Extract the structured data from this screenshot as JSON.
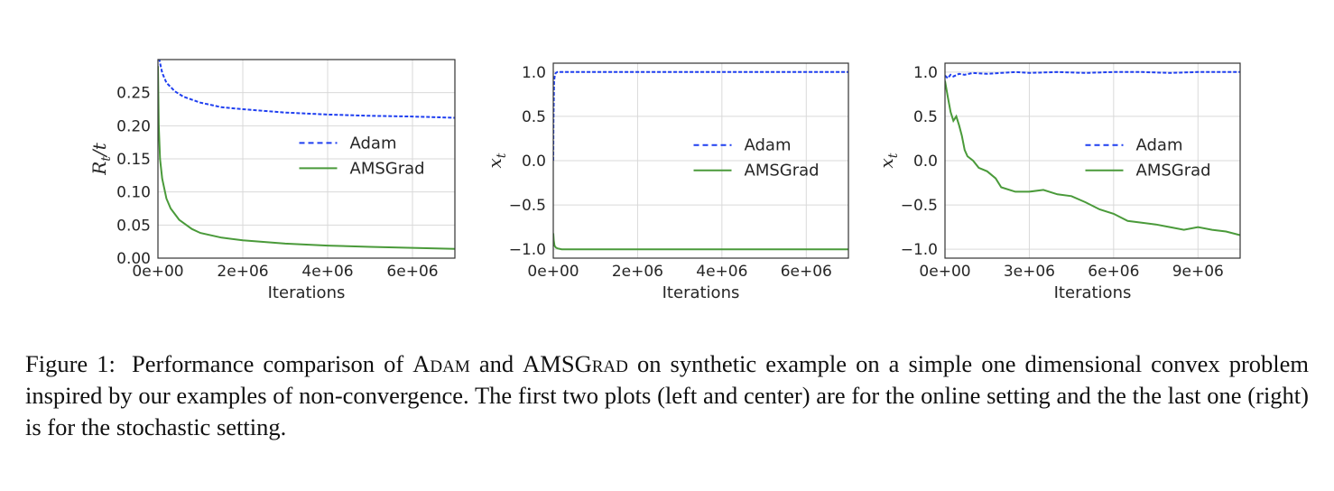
{
  "colors": {
    "adam": "#1f3ff0",
    "amsgrad": "#4a9a3a",
    "grid": "#d9d9d9",
    "frame": "#333333"
  },
  "caption": {
    "label": "Figure 1:",
    "t1": "Performance comparison of",
    "algo1": "Adam",
    "t2": "and",
    "algo2": "AMSGrad",
    "t3": "on synthetic example on a simple one dimensional convex problem inspired by our examples of non-convergence. The first two plots (left and center) are for the online setting and the the last one (right) is for the stochastic setting."
  },
  "chart_data": [
    {
      "type": "line",
      "xlabel": "Iterations",
      "ylabel": "Rt/t",
      "xlim": [
        0,
        7000000
      ],
      "ylim": [
        0,
        0.3
      ],
      "xticks": [
        0,
        2000000,
        4000000,
        6000000
      ],
      "xtick_labels": [
        "0e+00",
        "2e+06",
        "4e+06",
        "6e+06"
      ],
      "yticks": [
        0,
        0.05,
        0.1,
        0.15,
        0.2,
        0.25
      ],
      "ytick_labels": [
        "0.00",
        "0.05",
        "0.10",
        "0.15",
        "0.20",
        "0.25"
      ],
      "grid": true,
      "legend": "center-right",
      "series": [
        {
          "name": "Adam",
          "style": "dashed",
          "x": [
            0,
            50000,
            100000,
            200000,
            400000,
            600000,
            1000000,
            1500000,
            2000000,
            3000000,
            4000000,
            5000000,
            6000000,
            7000000
          ],
          "y": [
            0.31,
            0.295,
            0.28,
            0.265,
            0.252,
            0.244,
            0.235,
            0.228,
            0.225,
            0.22,
            0.217,
            0.215,
            0.214,
            0.212
          ]
        },
        {
          "name": "AMSGrad",
          "style": "solid",
          "x": [
            0,
            10000,
            20000,
            50000,
            100000,
            200000,
            300000,
            500000,
            800000,
            1000000,
            1500000,
            2000000,
            3000000,
            4000000,
            5000000,
            6000000,
            7000000
          ],
          "y": [
            0.29,
            0.24,
            0.2,
            0.15,
            0.12,
            0.09,
            0.075,
            0.058,
            0.044,
            0.038,
            0.031,
            0.027,
            0.022,
            0.019,
            0.017,
            0.0155,
            0.014
          ]
        }
      ]
    },
    {
      "type": "line",
      "xlabel": "Iterations",
      "ylabel": "xt",
      "xlim": [
        0,
        7000000
      ],
      "ylim": [
        -1.1,
        1.1
      ],
      "xticks": [
        0,
        2000000,
        4000000,
        6000000
      ],
      "xtick_labels": [
        "0e+00",
        "2e+06",
        "4e+06",
        "6e+06"
      ],
      "yticks": [
        1.0,
        0.5,
        0.0,
        -0.5,
        -1.0
      ],
      "ytick_labels": [
        "1.0",
        "0.5",
        "0.0",
        "−0.5",
        "−1.0"
      ],
      "grid": true,
      "legend": "center-right",
      "series": [
        {
          "name": "Adam",
          "style": "dashed",
          "x": [
            0,
            5000,
            20000,
            40000,
            60000,
            100000,
            7000000
          ],
          "y": [
            0.0,
            0.45,
            0.9,
            0.97,
            0.99,
            1.0,
            1.0
          ]
        },
        {
          "name": "AMSGrad",
          "style": "solid",
          "x": [
            0,
            10000,
            30000,
            60000,
            100000,
            200000,
            7000000
          ],
          "y": [
            -0.82,
            -0.9,
            -0.96,
            -0.98,
            -0.99,
            -1.0,
            -1.0
          ]
        }
      ]
    },
    {
      "type": "line",
      "xlabel": "Iterations",
      "ylabel": "xt",
      "xlim": [
        0,
        10500000
      ],
      "ylim": [
        -1.1,
        1.1
      ],
      "xticks": [
        0,
        3000000,
        6000000,
        9000000
      ],
      "xtick_labels": [
        "0e+00",
        "3e+06",
        "6e+06",
        "9e+06"
      ],
      "yticks": [
        1.0,
        0.5,
        0.0,
        -0.5,
        -1.0
      ],
      "ytick_labels": [
        "1.0",
        "0.5",
        "0.0",
        "−0.5",
        "−1.0"
      ],
      "grid": true,
      "legend": "center-right",
      "series": [
        {
          "name": "Adam",
          "style": "dashed",
          "x": [
            0,
            100000,
            200000,
            300000,
            500000,
            700000,
            1000000,
            1500000,
            2000000,
            2500000,
            3000000,
            4000000,
            5000000,
            6000000,
            7000000,
            8000000,
            9000000,
            10500000
          ],
          "y": [
            0.96,
            0.93,
            0.97,
            0.95,
            0.98,
            0.97,
            0.99,
            0.98,
            0.99,
            1.0,
            0.99,
            1.0,
            0.99,
            1.0,
            1.0,
            0.99,
            1.0,
            1.0
          ]
        },
        {
          "name": "AMSGrad",
          "style": "solid",
          "x": [
            0,
            100000,
            200000,
            300000,
            400000,
            500000,
            600000,
            700000,
            800000,
            1000000,
            1200000,
            1500000,
            1800000,
            2000000,
            2500000,
            3000000,
            3500000,
            4000000,
            4500000,
            5000000,
            5500000,
            6000000,
            6500000,
            7000000,
            7500000,
            8000000,
            8500000,
            9000000,
            9500000,
            10000000,
            10500000
          ],
          "y": [
            0.9,
            0.72,
            0.55,
            0.45,
            0.5,
            0.4,
            0.28,
            0.12,
            0.05,
            0.0,
            -0.08,
            -0.12,
            -0.2,
            -0.3,
            -0.35,
            -0.35,
            -0.33,
            -0.38,
            -0.4,
            -0.47,
            -0.55,
            -0.6,
            -0.68,
            -0.7,
            -0.72,
            -0.75,
            -0.78,
            -0.75,
            -0.78,
            -0.8,
            -0.84
          ]
        }
      ]
    }
  ]
}
